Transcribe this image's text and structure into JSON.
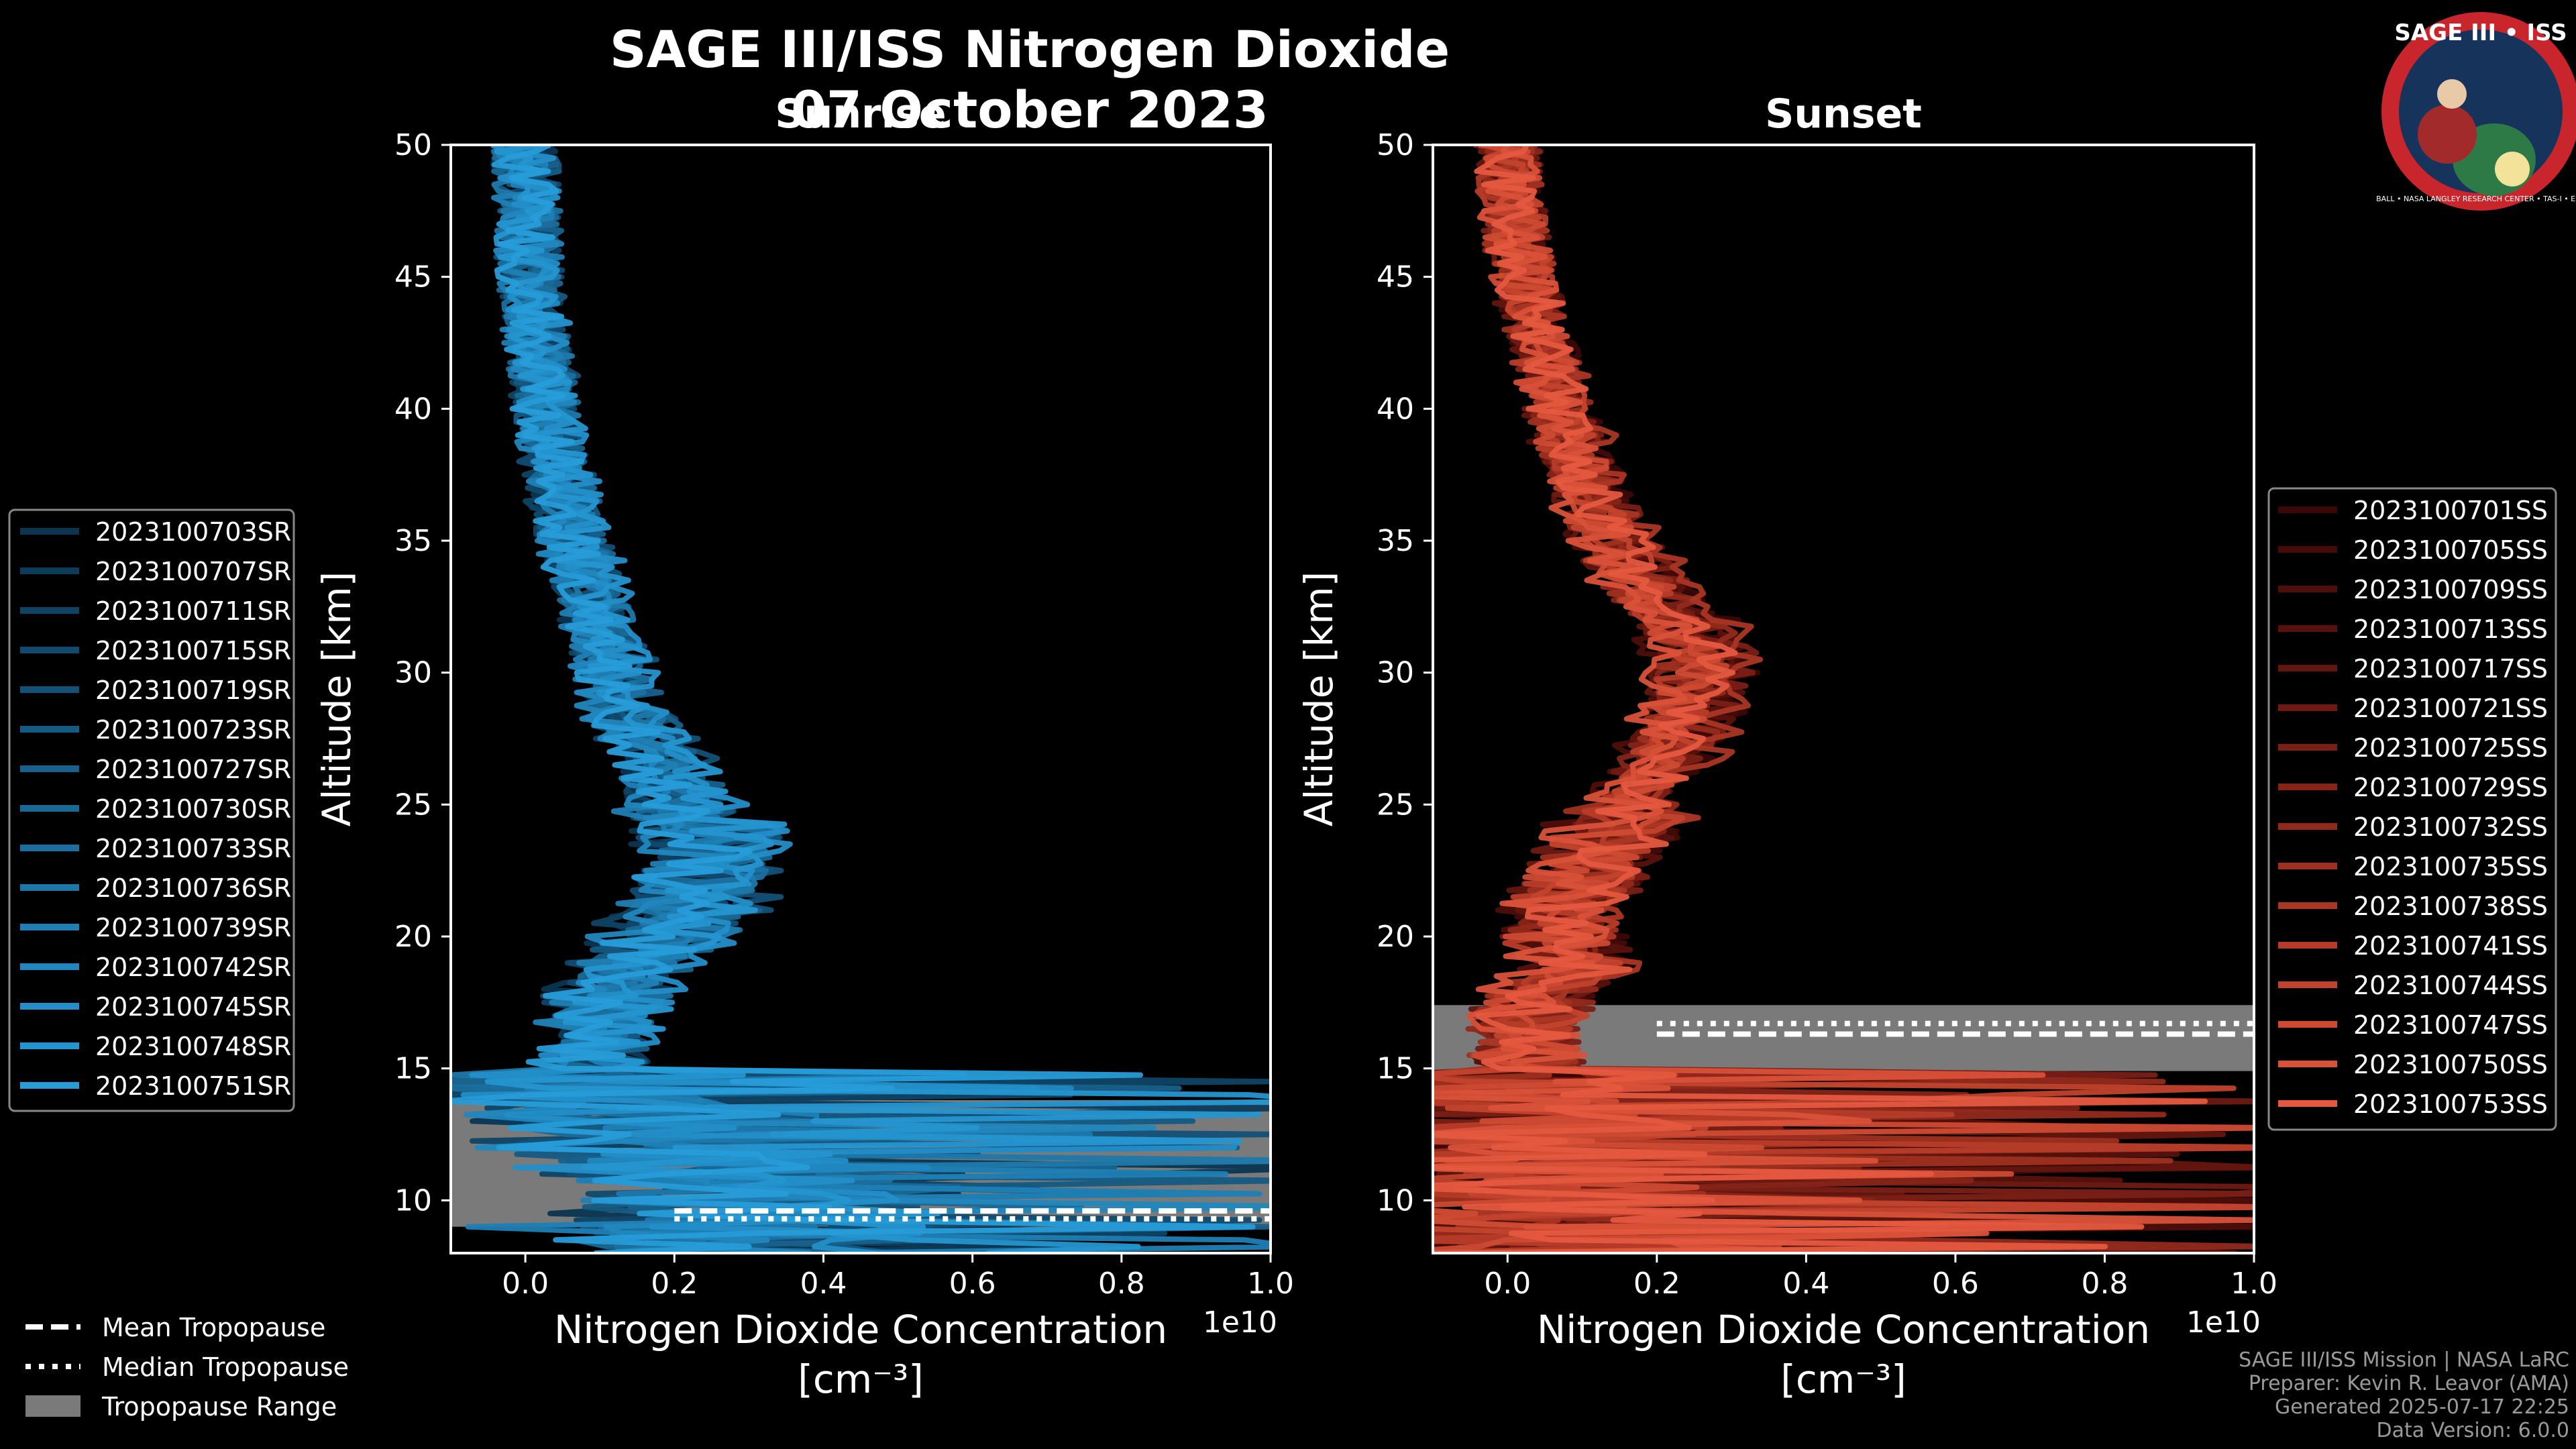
{
  "title": "SAGE III/ISS Nitrogen Dioxide",
  "date": "07 October 2023",
  "logo": {
    "text": "SAGE III • ISS",
    "ring_text": "BALL • NASA LANGLEY RESEARCH CENTER • TAS-I • ESA"
  },
  "credits": [
    "SAGE III/ISS Mission | NASA LaRC",
    "Preparer: Kevin R. Leavor (AMA)",
    "Generated 2025-07-17 22:25",
    "Data Version: 6.0.0"
  ],
  "tropopause_legend": [
    "Mean Tropopause",
    "Median Tropopause",
    "Tropopause Range"
  ],
  "colors": {
    "background": "#000000",
    "sunrise": "#1e90d6",
    "sunset": "#e8584a",
    "tropopause_range": "#7a7a7a"
  },
  "chart_data": [
    {
      "type": "line",
      "title": "Sunrise",
      "xlabel": "Nitrogen Dioxide Concentration",
      "xlabel_units": "[cm⁻³]",
      "x_multiplier": "1e10",
      "ylabel": "Altitude [km]",
      "xlim": [
        -0.1,
        1.0
      ],
      "ylim": [
        8,
        50
      ],
      "xticks": [
        0.0,
        0.2,
        0.4,
        0.6,
        0.8,
        1.0
      ],
      "xtick_labels": [
        "0.0",
        "0.2",
        "0.4",
        "0.6",
        "0.8",
        "1.0"
      ],
      "yticks": [
        10,
        15,
        20,
        25,
        30,
        35,
        40,
        45,
        50
      ],
      "ytick_labels": [
        "10",
        "15",
        "20",
        "25",
        "30",
        "35",
        "40",
        "45",
        "50"
      ],
      "legend": [
        "2023100703SR",
        "2023100707SR",
        "2023100711SR",
        "2023100715SR",
        "2023100719SR",
        "2023100723SR",
        "2023100727SR",
        "2023100730SR",
        "2023100733SR",
        "2023100736SR",
        "2023100739SR",
        "2023100742SR",
        "2023100745SR",
        "2023100748SR",
        "2023100751SR"
      ],
      "series_colors": [
        "#0b3550",
        "#0d3b5a",
        "#0f4364",
        "#114a6e",
        "#135177",
        "#155a82",
        "#17618c",
        "#196996",
        "#1b70a0",
        "#1d78aa",
        "#1f7fb4",
        "#2187be",
        "#238ec8",
        "#2595d0",
        "#279cd8"
      ],
      "median_profile": {
        "altitude": [
          9,
          10,
          11,
          12,
          13,
          14,
          15,
          16,
          17,
          18,
          19,
          20,
          21,
          22,
          23,
          24,
          25,
          26,
          27,
          28,
          29,
          30,
          32,
          34,
          36,
          38,
          40,
          42,
          44,
          46,
          48,
          50
        ],
        "no2": [
          0.3,
          0.3,
          0.25,
          0.2,
          0.15,
          0.1,
          0.08,
          0.1,
          0.1,
          0.12,
          0.15,
          0.2,
          0.22,
          0.25,
          0.26,
          0.25,
          0.22,
          0.2,
          0.18,
          0.15,
          0.13,
          0.12,
          0.1,
          0.08,
          0.06,
          0.04,
          0.03,
          0.02,
          0.01,
          0.005,
          0.002,
          0.0
        ]
      },
      "tropopause": {
        "mean_km": 9.6,
        "median_km": 9.3,
        "range_km": [
          9.0,
          13.8
        ]
      }
    },
    {
      "type": "line",
      "title": "Sunset",
      "xlabel": "Nitrogen Dioxide Concentration",
      "xlabel_units": "[cm⁻³]",
      "x_multiplier": "1e10",
      "ylabel": "Altitude [km]",
      "xlim": [
        -0.1,
        1.0
      ],
      "ylim": [
        8,
        50
      ],
      "xticks": [
        0.0,
        0.2,
        0.4,
        0.6,
        0.8,
        1.0
      ],
      "xtick_labels": [
        "0.0",
        "0.2",
        "0.4",
        "0.6",
        "0.8",
        "1.0"
      ],
      "yticks": [
        10,
        15,
        20,
        25,
        30,
        35,
        40,
        45,
        50
      ],
      "ytick_labels": [
        "10",
        "15",
        "20",
        "25",
        "30",
        "35",
        "40",
        "45",
        "50"
      ],
      "legend": [
        "2023100701SS",
        "2023100705SS",
        "2023100709SS",
        "2023100713SS",
        "2023100717SS",
        "2023100721SS",
        "2023100725SS",
        "2023100729SS",
        "2023100732SS",
        "2023100735SS",
        "2023100738SS",
        "2023100741SS",
        "2023100744SS",
        "2023100747SS",
        "2023100750SS",
        "2023100753SS"
      ],
      "series_colors": [
        "#3a0806",
        "#440b08",
        "#4e0e0a",
        "#58120d",
        "#63160f",
        "#6e1a12",
        "#7a1f15",
        "#862418",
        "#922a1c",
        "#9e3020",
        "#aa3624",
        "#b63c28",
        "#c2432d",
        "#ce4a33",
        "#d95139",
        "#e4583f"
      ],
      "median_profile": {
        "altitude": [
          9,
          10,
          11,
          12,
          13,
          14,
          15,
          16,
          17,
          18,
          19,
          20,
          21,
          22,
          23,
          24,
          25,
          26,
          27,
          28,
          29,
          30,
          31,
          32,
          33,
          34,
          36,
          38,
          40,
          42,
          44,
          46,
          48,
          50
        ],
        "no2": [
          0.05,
          0.05,
          0.05,
          0.05,
          0.05,
          0.05,
          0.04,
          0.02,
          0.03,
          0.05,
          0.1,
          0.08,
          0.08,
          0.1,
          0.12,
          0.15,
          0.18,
          0.2,
          0.22,
          0.24,
          0.26,
          0.27,
          0.27,
          0.24,
          0.2,
          0.17,
          0.13,
          0.1,
          0.07,
          0.05,
          0.03,
          0.015,
          0.005,
          0.0
        ]
      },
      "tropopause": {
        "mean_km": 16.3,
        "median_km": 16.7,
        "range_km": [
          14.9,
          17.4
        ]
      }
    }
  ]
}
